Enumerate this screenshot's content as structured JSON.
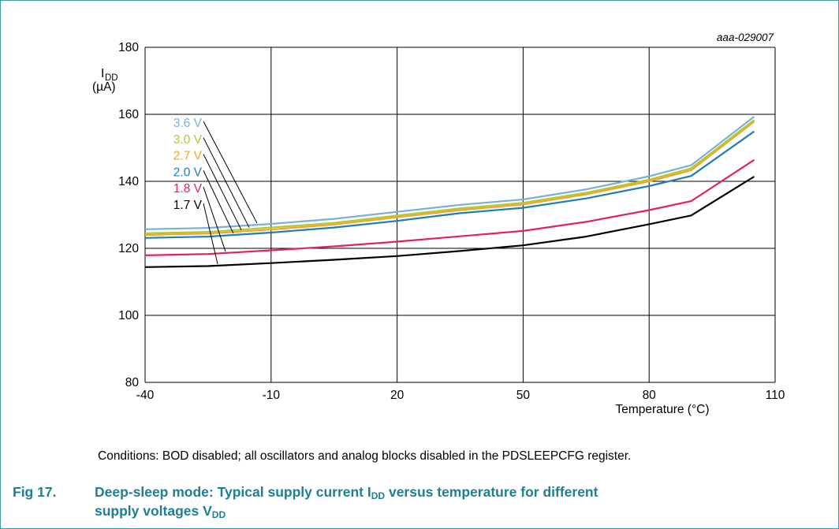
{
  "figure": {
    "ref_code": "aaa-029007",
    "conditions": "Conditions: BOD disabled; all oscillators and analog blocks disabled in the PDSLEEPCFG register.",
    "caption": {
      "number": "Fig 17.",
      "text_part1": "Deep-sleep mode: Typical supply current I",
      "sub1": "DD",
      "text_part2": " versus temperature for different",
      "text_line2": "supply voltages V",
      "sub2": "DD"
    }
  },
  "chart_data": {
    "type": "line",
    "title": "",
    "xlabel": "Temperature (°C)",
    "ylabel_main": "I",
    "ylabel_sub": "DD",
    "ylabel_unit": "(µA)",
    "xlim": [
      -40,
      110
    ],
    "ylim": [
      80,
      180
    ],
    "xticks": [
      -40,
      -10,
      20,
      50,
      80,
      110
    ],
    "yticks": [
      80,
      100,
      120,
      140,
      160,
      180
    ],
    "grid": true,
    "series": [
      {
        "name": "3.6 V",
        "color": "#7bafd4",
        "x": [
          -40,
          -25,
          -10,
          5,
          20,
          35,
          50,
          65,
          80,
          90,
          105
        ],
        "y": [
          125.7,
          126.1,
          127.3,
          128.8,
          130.9,
          133.0,
          134.6,
          137.6,
          141.5,
          144.8,
          159.3
        ]
      },
      {
        "name": "3.0 V",
        "color": "#b5c92e",
        "x": [
          -40,
          -25,
          -10,
          5,
          20,
          35,
          50,
          65,
          80,
          90,
          105
        ],
        "y": [
          124.5,
          124.9,
          126.2,
          127.6,
          129.8,
          131.9,
          133.6,
          136.6,
          140.5,
          143.9,
          158.3
        ]
      },
      {
        "name": "2.7 V",
        "color": "#f3a42d",
        "x": [
          -40,
          -25,
          -10,
          5,
          20,
          35,
          50,
          65,
          80,
          90,
          105
        ],
        "y": [
          124.0,
          124.4,
          125.6,
          127.1,
          129.3,
          131.4,
          133.1,
          136.1,
          140.0,
          143.3,
          157.8
        ]
      },
      {
        "name": "2.0 V",
        "color": "#1f7dbc",
        "x": [
          -40,
          -25,
          -10,
          5,
          20,
          35,
          50,
          65,
          80,
          90,
          105
        ],
        "y": [
          123.1,
          123.5,
          124.7,
          126.2,
          128.2,
          130.5,
          132.1,
          134.9,
          138.6,
          141.6,
          154.9
        ]
      },
      {
        "name": "1.8 V",
        "color": "#e0245e",
        "x": [
          -40,
          -25,
          -10,
          5,
          20,
          35,
          50,
          65,
          80,
          90,
          105
        ],
        "y": [
          117.9,
          118.3,
          119.4,
          120.6,
          122.0,
          123.6,
          125.2,
          127.9,
          131.4,
          134.1,
          146.4
        ]
      },
      {
        "name": "1.7 V",
        "color": "#000000",
        "x": [
          -40,
          -25,
          -10,
          5,
          20,
          35,
          50,
          65,
          80,
          90,
          105
        ],
        "y": [
          114.4,
          114.7,
          115.6,
          116.6,
          117.7,
          119.2,
          120.9,
          123.5,
          127.2,
          129.8,
          141.4
        ]
      }
    ]
  }
}
